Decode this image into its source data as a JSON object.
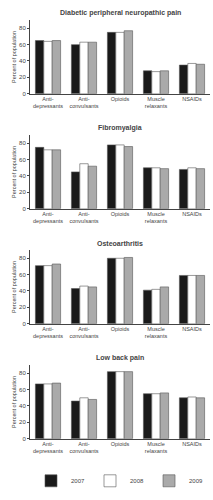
{
  "chart_data": [
    {
      "type": "bar",
      "title": "Diabetic peripheral neuropathic pain",
      "ylabel": "Percent of population",
      "categories": [
        "Anti-\ndepressants",
        "Anti-\nconvulsants",
        "Opioids",
        "Muscle\nrelaxants",
        "NSAIDs"
      ],
      "series": [
        {
          "name": "2007",
          "color": "#1a1a1a",
          "values": [
            65,
            60,
            75,
            28,
            35
          ]
        },
        {
          "name": "2008",
          "color": "#ffffff",
          "values": [
            64,
            63,
            75,
            27,
            37
          ]
        },
        {
          "name": "2009",
          "color": "#aaaaaa",
          "values": [
            65,
            63,
            77,
            28,
            36
          ]
        }
      ],
      "ylim": [
        0,
        90
      ],
      "yticks": [
        0,
        20,
        40,
        60,
        80
      ],
      "grid": false
    },
    {
      "type": "bar",
      "title": "Fibromyalgia",
      "ylabel": "Percent of population",
      "categories": [
        "Anti-\ndepressants",
        "Anti-\nconvulsants",
        "Opioids",
        "Muscle\nrelaxants",
        "NSAIDs"
      ],
      "series": [
        {
          "name": "2007",
          "color": "#1a1a1a",
          "values": [
            75,
            45,
            78,
            50,
            48
          ]
        },
        {
          "name": "2008",
          "color": "#ffffff",
          "values": [
            72,
            55,
            78,
            50,
            50
          ]
        },
        {
          "name": "2009",
          "color": "#aaaaaa",
          "values": [
            72,
            52,
            76,
            49,
            49
          ]
        }
      ],
      "ylim": [
        0,
        90
      ],
      "yticks": [
        0,
        20,
        40,
        60,
        80
      ],
      "grid": false
    },
    {
      "type": "bar",
      "title": "Osteoarthritis",
      "ylabel": "Percent of population",
      "categories": [
        "Anti-\ndepressants",
        "Anti-\nconvulsants",
        "Opioids",
        "Muscle\nrelaxants",
        "NSAIDs"
      ],
      "series": [
        {
          "name": "2007",
          "color": "#1a1a1a",
          "values": [
            71,
            43,
            80,
            41,
            59
          ]
        },
        {
          "name": "2008",
          "color": "#ffffff",
          "values": [
            71,
            46,
            80,
            42,
            59
          ]
        },
        {
          "name": "2009",
          "color": "#aaaaaa",
          "values": [
            73,
            45,
            81,
            45,
            59
          ]
        }
      ],
      "ylim": [
        0,
        90
      ],
      "yticks": [
        0,
        20,
        40,
        60,
        80
      ],
      "grid": false
    },
    {
      "type": "bar",
      "title": "Low back pain",
      "ylabel": "Percent of population",
      "categories": [
        "Anti-\ndepressants",
        "Anti-\nconvulsants",
        "Opioids",
        "Muscle\nrelaxants",
        "NSAIDs"
      ],
      "series": [
        {
          "name": "2007",
          "color": "#1a1a1a",
          "values": [
            67,
            46,
            82,
            55,
            50
          ]
        },
        {
          "name": "2008",
          "color": "#ffffff",
          "values": [
            67,
            50,
            82,
            55,
            51
          ]
        },
        {
          "name": "2009",
          "color": "#aaaaaa",
          "values": [
            68,
            48,
            82,
            56,
            50
          ]
        }
      ],
      "ylim": [
        0,
        90
      ],
      "yticks": [
        0,
        20,
        40,
        60,
        80
      ],
      "grid": false,
      "legend": "bottom"
    }
  ]
}
